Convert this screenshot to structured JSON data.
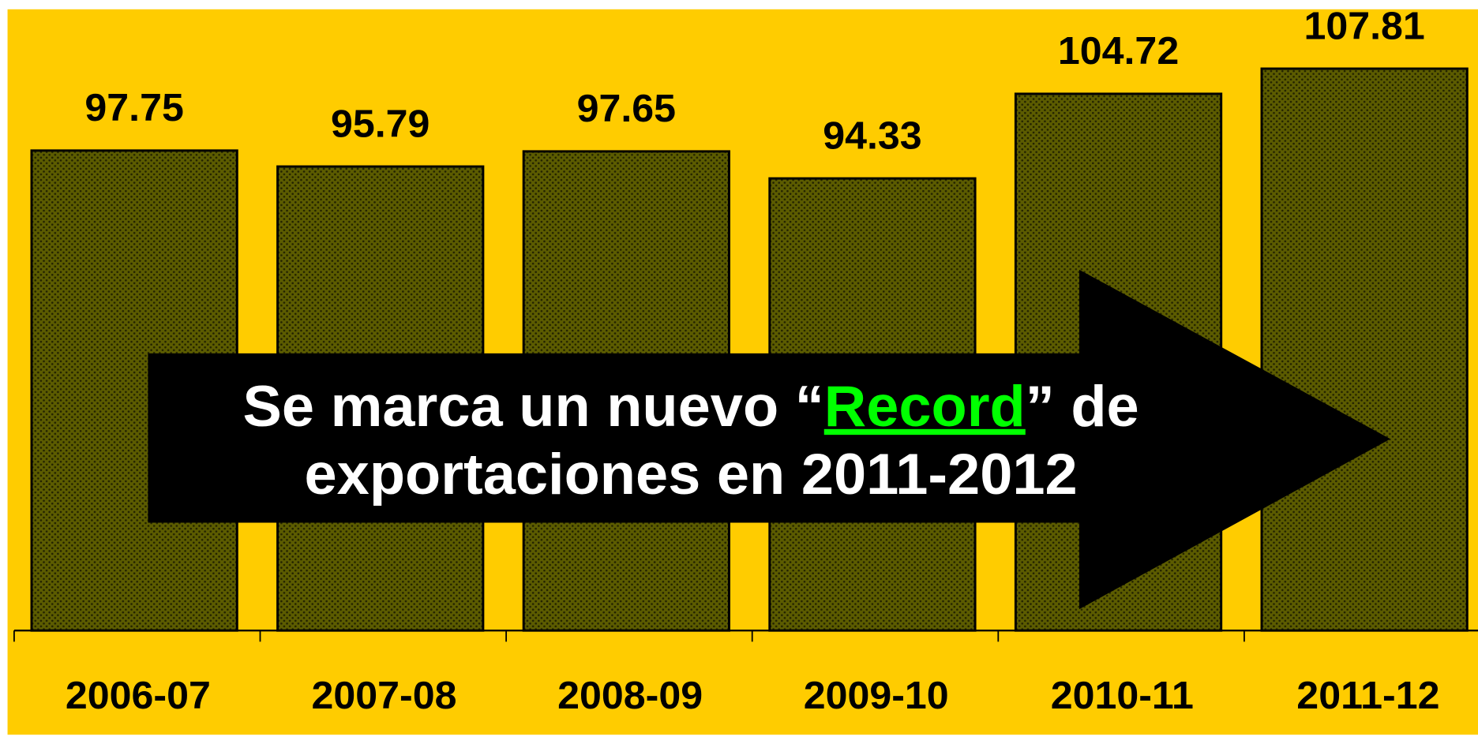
{
  "chart_data": {
    "type": "bar",
    "categories": [
      "2006-07",
      "2007-08",
      "2008-09",
      "2009-10",
      "2010-11",
      "2011-12"
    ],
    "values": [
      97.75,
      95.79,
      97.65,
      94.33,
      104.72,
      107.81
    ],
    "color": "#5c5c00",
    "background": "#ffcc00",
    "ylim": [
      38.8,
      115.1
    ],
    "annotation": [
      "Se marca un nuevo “",
      "Record",
      "” de",
      "exportaciones en 2011-2012"
    ],
    "annotation_highlight_color": "#00ff00"
  }
}
